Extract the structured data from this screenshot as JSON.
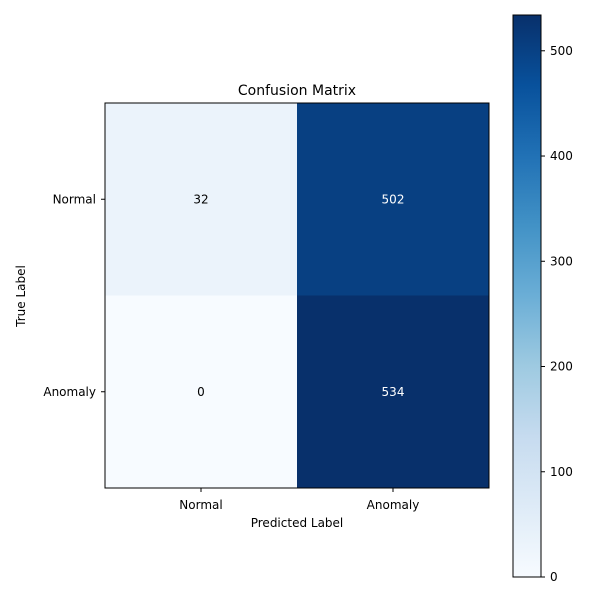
{
  "chart_data": {
    "type": "heatmap",
    "title": "Confusion Matrix",
    "xlabel": "Predicted Label",
    "ylabel": "True Label",
    "x_categories": [
      "Normal",
      "Anomaly"
    ],
    "y_categories": [
      "Normal",
      "Anomaly"
    ],
    "values": [
      [
        32,
        502
      ],
      [
        0,
        534
      ]
    ],
    "colormap": "Blues",
    "color_range": [
      0,
      534
    ],
    "colorbar_ticks": [
      0,
      100,
      200,
      300,
      400,
      500
    ],
    "grid": false
  }
}
